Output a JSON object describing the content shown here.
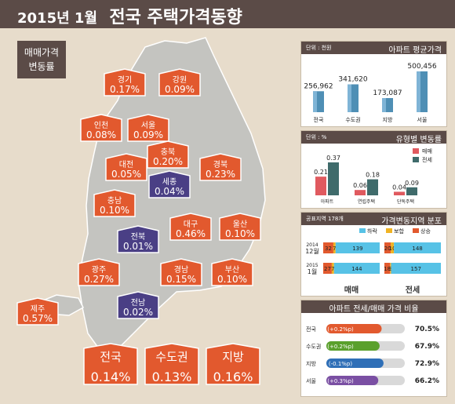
{
  "title": {
    "year": "2015년 1월",
    "main": "전국 주택가격동향"
  },
  "legend_label": [
    "매매가격",
    "변동률"
  ],
  "colors": {
    "up": "#e2592e",
    "neutral": "#4a3f85",
    "dark": "#5b4b47",
    "bg": "#e7dccb",
    "map": "#c4c4c0"
  },
  "regions": [
    {
      "name": "경기",
      "value": "0.17%",
      "type": "up"
    },
    {
      "name": "강원",
      "value": "0.09%",
      "type": "up"
    },
    {
      "name": "인천",
      "value": "0.08%",
      "type": "up"
    },
    {
      "name": "서울",
      "value": "0.09%",
      "type": "up"
    },
    {
      "name": "충북",
      "value": "0.20%",
      "type": "up"
    },
    {
      "name": "대전",
      "value": "0.05%",
      "type": "up"
    },
    {
      "name": "경북",
      "value": "0.23%",
      "type": "up"
    },
    {
      "name": "세종",
      "value": "0.04%",
      "type": "neutral"
    },
    {
      "name": "충남",
      "value": "0.10%",
      "type": "up"
    },
    {
      "name": "대구",
      "value": "0.46%",
      "type": "up"
    },
    {
      "name": "울산",
      "value": "0.10%",
      "type": "up"
    },
    {
      "name": "전북",
      "value": "0.01%",
      "type": "neutral"
    },
    {
      "name": "광주",
      "value": "0.27%",
      "type": "up"
    },
    {
      "name": "경남",
      "value": "0.15%",
      "type": "up"
    },
    {
      "name": "부산",
      "value": "0.10%",
      "type": "up"
    },
    {
      "name": "전남",
      "value": "0.02%",
      "type": "neutral"
    },
    {
      "name": "제주",
      "value": "0.57%",
      "type": "up"
    }
  ],
  "summary": [
    {
      "name": "전국",
      "value": "0.14%"
    },
    {
      "name": "수도권",
      "value": "0.13%"
    },
    {
      "name": "지방",
      "value": "0.16%"
    }
  ],
  "chart_data": [
    {
      "type": "bar",
      "title": "아파트 평균가격",
      "unit": "단위 : 천원",
      "categories": [
        "전국",
        "수도권",
        "지방",
        "서울"
      ],
      "values": [
        256962,
        341620,
        173087,
        500456
      ],
      "labels": [
        "256,962",
        "341,620",
        "173,087",
        "500,456"
      ]
    },
    {
      "type": "bar",
      "title": "유형별 변동률",
      "unit": "단위 : %",
      "categories": [
        "아파트",
        "연립주택",
        "단독주택"
      ],
      "series": [
        {
          "name": "매매",
          "values": [
            0.21,
            0.06,
            0.04
          ],
          "color": "#e05a5f"
        },
        {
          "name": "전세",
          "values": [
            0.37,
            0.18,
            0.09
          ],
          "color": "#3f6b6b"
        }
      ]
    },
    {
      "type": "bar",
      "title": "가격변동지역 분포",
      "note": "공표지역 178개",
      "legend": [
        "하락",
        "보합",
        "상승"
      ],
      "colors": [
        "#57c2e6",
        "#f0b323",
        "#e2592e"
      ],
      "rows": [
        {
          "period": [
            "2014",
            "12월"
          ],
          "매매": [
            139,
            7,
            32
          ],
          "전세": [
            148,
            10,
            20
          ]
        },
        {
          "period": [
            "2015",
            "1월"
          ],
          "매매": [
            144,
            7,
            27
          ],
          "전세": [
            157,
            3,
            18
          ]
        }
      ],
      "groups": [
        "매매",
        "전세"
      ]
    },
    {
      "type": "bar",
      "title": "아파트 전세/매매 가격 비율",
      "categories": [
        "전국",
        "수도권",
        "지방",
        "서울"
      ],
      "changes": [
        "(+0.2%p)",
        "(+0.2%p)",
        "(-0.1%p)",
        "(+0.3%p)"
      ],
      "values": [
        70.5,
        67.9,
        72.9,
        66.2
      ],
      "labels": [
        "70.5%",
        "67.9%",
        "72.9%",
        "66.2%"
      ],
      "colors": [
        "#e2592e",
        "#5aa02c",
        "#2f6fb7",
        "#7a4fa3"
      ]
    }
  ]
}
